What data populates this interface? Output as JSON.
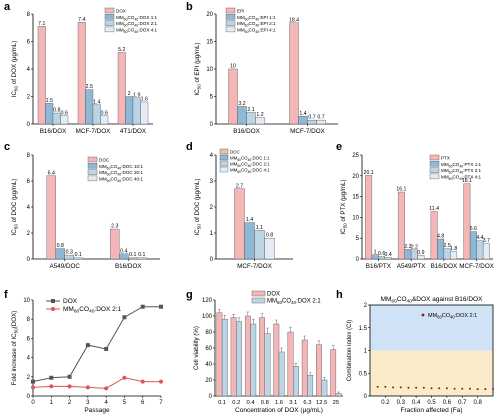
{
  "panels": [
    {
      "letter": "a",
      "chart_data": {
        "type": "bar",
        "ylabel": "IC50 of DOX (μg/mL)",
        "ylim": [
          0,
          8
        ],
        "yticks": [
          0,
          2,
          4,
          6,
          8
        ],
        "categories": [
          "B16/DOX",
          "MCF-7/DOX",
          "4T1/DOX"
        ],
        "series": [
          {
            "name": "DOX",
            "color": "#f4b6b6",
            "values": [
              7.1,
              7.4,
              5.2
            ]
          },
          {
            "name": "MM60CO40:DOX 1:1",
            "color": "#8fb8d6",
            "values": [
              1.5,
              2.5,
              2
            ]
          },
          {
            "name": "MM60CO40:DOX 2:1",
            "color": "#bcd5e6",
            "values": [
              0.8,
              1.4,
              1.9
            ]
          },
          {
            "name": "MM60CO40:DOX 4:1",
            "color": "#e4edf6",
            "values": [
              0.6,
              0.6,
              1.6
            ]
          }
        ],
        "value_labels": [
          [
            "7.1",
            "1.5",
            "0.8",
            "0.6"
          ],
          [
            "7.4",
            "2.5",
            "1.4",
            "0.6"
          ],
          [
            "5.2",
            "2",
            "1.9",
            "1.6"
          ]
        ],
        "legend": "top-right"
      }
    },
    {
      "letter": "b",
      "chart_data": {
        "type": "bar",
        "ylabel": "IC50 of EPI (μg/mL)",
        "ylim": [
          0,
          20
        ],
        "yticks": [
          0,
          5,
          10,
          15,
          20
        ],
        "categories": [
          "B16/DOX",
          "MCF-7/DOX"
        ],
        "series": [
          {
            "name": "EPI",
            "color": "#f4b6b6",
            "values": [
              10,
              18.4
            ]
          },
          {
            "name": "MM60CO40:EPI 1:1",
            "color": "#8fb8d6",
            "values": [
              3.2,
              1.4
            ]
          },
          {
            "name": "MM60CO40:EPI 2:1",
            "color": "#bcd5e6",
            "values": [
              2.1,
              0.7
            ]
          },
          {
            "name": "MM60CO40:EPI 4:1",
            "color": "#e4edf6",
            "values": [
              1.2,
              0.7
            ]
          }
        ],
        "value_labels": [
          [
            "10",
            "3.2",
            "2.1",
            "1.2"
          ],
          [
            "18.4",
            "1.4",
            "0.7",
            "0.7"
          ]
        ],
        "legend": "top-left"
      }
    },
    {
      "letter": "c",
      "chart_data": {
        "type": "bar",
        "ylabel": "IC50 of DOC (μg/mL)",
        "ylim": [
          0,
          8
        ],
        "yticks": [
          0,
          2,
          4,
          6,
          8
        ],
        "categories": [
          "A549/DOC",
          "B16/DOX"
        ],
        "series": [
          {
            "name": "DOC",
            "color": "#f4b6b6",
            "values": [
              6.4,
              2.3
            ]
          },
          {
            "name": "MM60CO40:DOC 10:1",
            "color": "#8fb8d6",
            "values": [
              0.8,
              0.4
            ]
          },
          {
            "name": "MM60CO40:DOC 20:1",
            "color": "#bcd5e6",
            "values": [
              0.3,
              0.1
            ]
          },
          {
            "name": "MM60CO40:DOC 40:1",
            "color": "#e4edf6",
            "values": [
              0.1,
              0.1
            ]
          }
        ],
        "value_labels": [
          [
            "6.4",
            "0.8",
            "0.3",
            "0.1"
          ],
          [
            "2.3",
            "0.4",
            "0.1",
            "0.1"
          ]
        ],
        "legend": "top-right"
      }
    },
    {
      "letter": "d",
      "chart_data": {
        "type": "bar",
        "ylabel": "IC50 of DOC (μg/mL)",
        "ylim": [
          0,
          4
        ],
        "yticks": [
          0,
          1,
          2,
          3,
          4
        ],
        "categories": [
          "MCF-7/DOX"
        ],
        "series": [
          {
            "name": "DOC",
            "color": "#f4b6b6",
            "values": [
              2.7
            ]
          },
          {
            "name": "MM60CO40:DOC 1:1",
            "color": "#8fb8d6",
            "values": [
              1.4
            ]
          },
          {
            "name": "MM60CO40:DOC 2:1",
            "color": "#bcd5e6",
            "values": [
              1.1
            ]
          },
          {
            "name": "MM60CO40:DOC 4:1",
            "color": "#e4edf6",
            "values": [
              0.8
            ]
          }
        ],
        "value_labels": [
          [
            "2.7",
            "1.4",
            "1.1",
            "0.8"
          ]
        ],
        "legend": "top-left"
      }
    },
    {
      "letter": "e",
      "chart_data": {
        "type": "bar",
        "ylabel": "IC50 of PTX (μg/mL)",
        "ylim": [
          0,
          25
        ],
        "yticks": [
          0,
          5,
          10,
          15,
          20,
          25
        ],
        "categories": [
          "B16/PTX",
          "A549/PTX",
          "B16/DOX",
          "MCF-7/DOX"
        ],
        "series": [
          {
            "name": "PTX",
            "color": "#f4b6b6",
            "values": [
              20.1,
              16.1,
              11.4,
              18.1
            ]
          },
          {
            "name": "MM60CO40:PTX 1:1",
            "color": "#8fb8d6",
            "values": [
              1,
              2.3,
              4.8,
              6.6
            ]
          },
          {
            "name": "MM60CO40:PTX 2:1",
            "color": "#bcd5e6",
            "values": [
              0.6,
              2.2,
              2.5,
              4.4
            ]
          },
          {
            "name": "MM60CO40:PTX 4:1",
            "color": "#e4edf6",
            "values": [
              0.4,
              0.9,
              1.8,
              3.7
            ]
          }
        ],
        "value_labels": [
          [
            "20.1",
            "1",
            "0.6",
            "0.4"
          ],
          [
            "16.1",
            "2.3",
            "2.2",
            "0.9"
          ],
          [
            "11.4",
            "4.8",
            "2.5",
            "1.8"
          ],
          [
            "18.1",
            "6.6",
            "4.4",
            "3.7"
          ]
        ],
        "legend": "top-right"
      }
    },
    {
      "letter": "f",
      "chart_data": {
        "type": "line",
        "xlabel": "Passage",
        "ylabel": "Fold increase of IC50(DOX)",
        "xlim": [
          0,
          7
        ],
        "ylim": [
          0,
          10
        ],
        "xticks": [
          0,
          1,
          2,
          3,
          4,
          5,
          6,
          7
        ],
        "yticks": [
          0,
          2,
          4,
          6,
          8,
          10
        ],
        "x": [
          0,
          1,
          2,
          3,
          4,
          5,
          6,
          7
        ],
        "series": [
          {
            "name": "DOX",
            "color": "#555555",
            "marker": "square",
            "values": [
              1.5,
              1.9,
              2.0,
              5.3,
              4.9,
              8.2,
              9.3,
              9.3
            ]
          },
          {
            "name": "MM60CO40:DOX 2:1",
            "color": "#e05555",
            "marker": "circle",
            "values": [
              0.9,
              1.0,
              1.0,
              0.9,
              0.8,
              1.9,
              1.5,
              1.5
            ]
          }
        ],
        "legend": "top-left"
      }
    },
    {
      "letter": "g",
      "chart_data": {
        "type": "bar",
        "xlabel": "Concentration of DOX (μg/mL)",
        "ylabel": "Cell viability (%)",
        "ylim": [
          0,
          120
        ],
        "yticks": [
          0,
          20,
          40,
          60,
          80,
          100,
          120
        ],
        "categories": [
          "0.1",
          "0.2",
          "0.4",
          "0.8",
          "1.6",
          "3.1",
          "6.3",
          "12.5",
          "25"
        ],
        "series": [
          {
            "name": "DOX",
            "color": "#f4b6b6",
            "values": [
              104,
              98,
              100,
              98,
              90,
              80,
              70,
              64,
              58
            ],
            "errors": [
              4,
              4,
              5,
              5,
              5,
              6,
              5,
              5,
              5
            ]
          },
          {
            "name": "MM60CO40:DOX 2:1",
            "color": "#bcd5e6",
            "values": [
              96,
              93,
              90,
              78,
              55,
              37,
              26,
              20,
              3
            ],
            "errors": [
              5,
              5,
              6,
              7,
              5,
              4,
              3,
              3,
              2
            ]
          }
        ],
        "legend": "top-center"
      }
    },
    {
      "letter": "h",
      "chart_data": {
        "type": "scatter",
        "title": "MM60CO40&DOX against B16/DOX",
        "xlabel": "Fraction affected (Fa)",
        "ylabel": "Combination index (CI)",
        "xlim": [
          0.1,
          0.9
        ],
        "ylim": [
          0,
          2
        ],
        "xticks": [
          0.2,
          0.3,
          0.4,
          0.5,
          0.6,
          0.7,
          0.8
        ],
        "yticks": [
          0.0,
          0.5,
          1.0,
          1.5,
          2.0
        ],
        "bands": [
          {
            "from": 0,
            "to": 1,
            "color": "#fbecc9"
          },
          {
            "from": 1,
            "to": 2,
            "color": "#cfe2f6"
          }
        ],
        "series": [
          {
            "name": "MM60CO40:DOX 2:1",
            "color": "#8b1a1a",
            "x": [
              0.15,
              0.2,
              0.25,
              0.3,
              0.35,
              0.4,
              0.45,
              0.5,
              0.55,
              0.6,
              0.65,
              0.7,
              0.75,
              0.8,
              0.85,
              0.9
            ],
            "values": [
              0.2,
              0.2,
              0.19,
              0.19,
              0.18,
              0.18,
              0.18,
              0.17,
              0.17,
              0.17,
              0.16,
              0.16,
              0.16,
              0.15,
              0.15,
              0.15
            ]
          }
        ],
        "legend": "top-right"
      }
    }
  ]
}
